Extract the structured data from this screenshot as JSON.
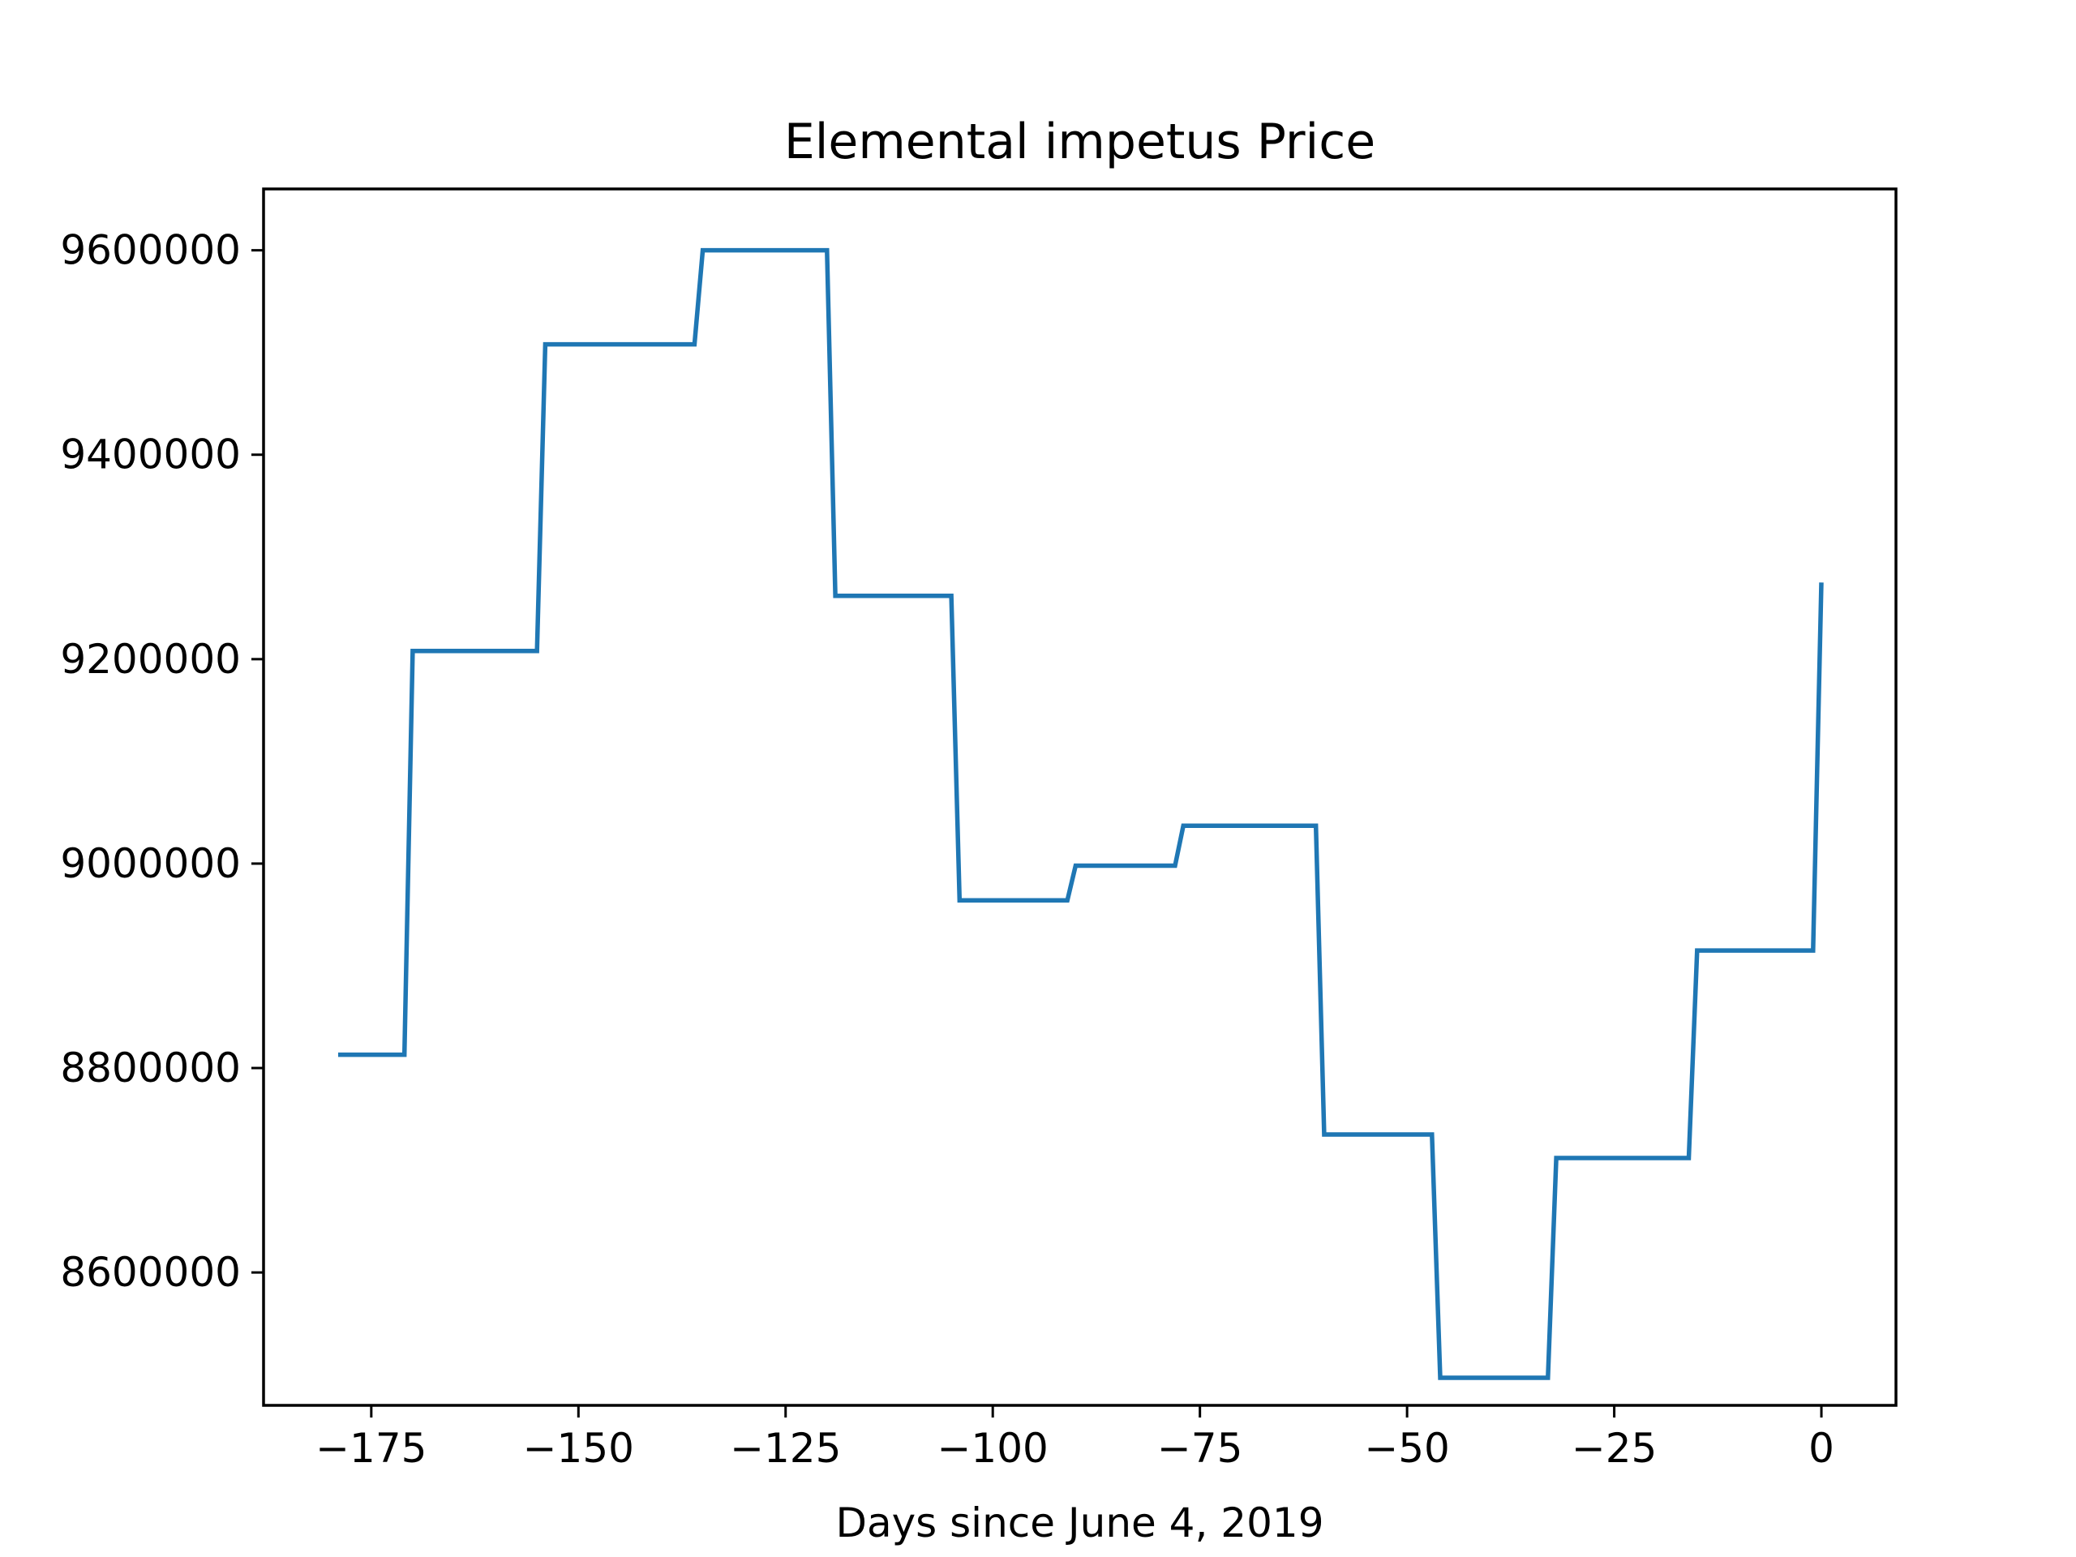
{
  "chart_data": {
    "type": "line",
    "title": "Elemental impetus Price",
    "xlabel": "Days since June 4, 2019",
    "ylabel": "",
    "xlim": [
      -188,
      9
    ],
    "ylim": [
      8470000,
      9660000
    ],
    "xticks": [
      -175,
      -150,
      -125,
      -100,
      -75,
      -50,
      -25,
      0
    ],
    "xtick_labels": [
      "−175",
      "−150",
      "−125",
      "−100",
      "−75",
      "−50",
      "−25",
      "0"
    ],
    "yticks": [
      8600000,
      8800000,
      9000000,
      9200000,
      9400000,
      9600000
    ],
    "ytick_labels": [
      "8600000",
      "8800000",
      "9000000",
      "9200000",
      "9400000",
      "9600000"
    ],
    "grid": false,
    "legend": "none",
    "line_color": "#1f77b4",
    "series": [
      {
        "x": [
          -179,
          -171,
          -170,
          -155,
          -154,
          -136,
          -135,
          -120,
          -119,
          -105,
          -104,
          -91,
          -90,
          -78,
          -77,
          -61,
          -60,
          -47,
          -46,
          -33,
          -32,
          -16,
          -15,
          -1,
          0
        ],
        "values": [
          8813000,
          8813000,
          9208000,
          9208000,
          9508000,
          9508000,
          9600000,
          9600000,
          9262000,
          9262000,
          8964000,
          8964000,
          8998000,
          8998000,
          9037000,
          9037000,
          8735000,
          8735000,
          8497000,
          8497000,
          8712000,
          8712000,
          8915000,
          8915000,
          9275000
        ]
      }
    ]
  }
}
